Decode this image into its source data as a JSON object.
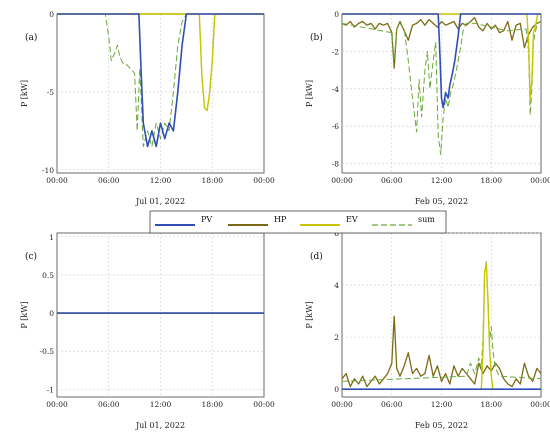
{
  "colors": {
    "PV": "#2f4fb5",
    "HP": "#7d6a14",
    "EV": "#c8c400",
    "sum": "#6aa83a",
    "pv_cut": "#d03a3a"
  },
  "legend": [
    "PV",
    "HP",
    "EV",
    "sum"
  ],
  "chart_data": [
    {
      "panel": "(a)",
      "type": "line",
      "xlabel": "Jul 01, 2022",
      "ylabel": "P  [kW]",
      "xticks": [
        "00:00",
        "06:00",
        "12:00",
        "18:00",
        "00:00"
      ],
      "yticks": [
        "0",
        "-5",
        "-10"
      ],
      "ylim": [
        -10.2,
        0
      ],
      "grid": true,
      "series": [
        {
          "name": "PV",
          "x": [
            0,
            5,
            9.5,
            9.7,
            10,
            10.5,
            11,
            11.5,
            12,
            12.5,
            13,
            13.5,
            14,
            14.5,
            15,
            16,
            24
          ],
          "y": [
            0,
            0,
            0,
            -3,
            -7,
            -8.5,
            -7.5,
            -8.5,
            -7,
            -8,
            -7,
            -7.5,
            -5,
            -2,
            0,
            0,
            0
          ]
        },
        {
          "name": "HP",
          "x": [
            0,
            24
          ],
          "y": [
            0,
            0
          ]
        },
        {
          "name": "EV",
          "x": [
            0,
            16.5,
            16.8,
            17.1,
            17.4,
            17.7,
            18,
            18.3,
            24
          ],
          "y": [
            0,
            0,
            -4,
            -6,
            -6.2,
            -5,
            -3,
            0,
            0
          ]
        },
        {
          "name": "sum",
          "x": [
            0,
            5.6,
            6,
            6.3,
            6.7,
            7,
            7.3,
            7.7,
            8,
            8.5,
            9,
            9.3,
            9.6,
            10,
            10.5,
            11,
            11.5,
            12,
            12.5,
            13,
            13.5,
            14,
            14.5,
            15,
            15.5,
            16,
            16.5,
            16.8,
            17.1,
            17.4,
            17.7,
            18,
            18.3,
            24
          ],
          "y": [
            0,
            0,
            -1.5,
            -3,
            -2.5,
            -2,
            -2.8,
            -3.2,
            -3.2,
            -3.5,
            -3.8,
            -7.5,
            -3.5,
            -8.5,
            -7.5,
            -8.5,
            -7,
            -8,
            -7,
            -7.5,
            -5,
            -2,
            -0.5,
            0,
            0,
            0,
            0,
            -4,
            -6,
            -6.2,
            -5,
            -3,
            0,
            0
          ]
        }
      ]
    },
    {
      "panel": "(b)",
      "type": "line",
      "xlabel": "Feb 05, 2022",
      "ylabel": "P  [kW]",
      "xticks": [
        "00:00",
        "06:00",
        "12:00",
        "18:00",
        "00:00"
      ],
      "yticks": [
        "0",
        "-2",
        "-4",
        "-6",
        "-8"
      ],
      "ylim": [
        -8.5,
        0
      ],
      "grid": true,
      "series": [
        {
          "name": "PV",
          "x": [
            0,
            11.6,
            11.8,
            12,
            12.2,
            12.5,
            12.8,
            13,
            13.3,
            13.6,
            14,
            14.3,
            24
          ],
          "y": [
            0,
            0,
            -2,
            -4.5,
            -5,
            -4.2,
            -4.5,
            -3.8,
            -3.2,
            -2.5,
            -1.2,
            0,
            0
          ]
        },
        {
          "name": "HP",
          "x": [
            0,
            0.5,
            1,
            1.5,
            2,
            2.5,
            3,
            3.5,
            4,
            4.5,
            5,
            5.5,
            6,
            6.3,
            6.6,
            7,
            7.5,
            8,
            8.5,
            9,
            9.5,
            10,
            10.5,
            11,
            11.5,
            12,
            12.5,
            13,
            13.5,
            14,
            14.5,
            15,
            15.5,
            16,
            16.5,
            17,
            17.5,
            18,
            18.5,
            19,
            19.5,
            20,
            20.5,
            21,
            21.5,
            22,
            22.5,
            23,
            23.5,
            24
          ],
          "y": [
            -0.5,
            -0.6,
            -0.4,
            -0.7,
            -0.5,
            -0.4,
            -0.6,
            -0.5,
            -0.8,
            -0.5,
            -0.6,
            -0.5,
            -1.0,
            -2.9,
            -0.8,
            -0.4,
            -0.9,
            -1.4,
            -0.6,
            -0.5,
            -0.3,
            -0.6,
            -0.3,
            -0.5,
            -0.7,
            -0.4,
            -0.6,
            -0.5,
            -0.4,
            -0.8,
            -0.5,
            -0.6,
            -0.4,
            -0.2,
            -0.7,
            -0.9,
            -0.5,
            -0.8,
            -0.6,
            -1.0,
            -0.9,
            -0.4,
            -1.4,
            -0.6,
            -0.5,
            -1.8,
            -1.1,
            -0.7,
            -0.5,
            -0.4
          ]
        },
        {
          "name": "EV",
          "x": [
            0,
            22.3,
            22.5,
            22.7,
            22.9,
            23.1,
            23.4,
            23.6,
            24
          ],
          "y": [
            0,
            0,
            -1.5,
            -4.6,
            -3.5,
            -1.0,
            -0.5,
            0,
            0
          ]
        },
        {
          "name": "sum",
          "x": [
            0,
            6,
            6.3,
            6.6,
            7,
            7.5,
            8,
            8.5,
            9,
            9.3,
            9.6,
            10,
            10.3,
            10.6,
            11,
            11.3,
            11.6,
            11.9,
            12.2,
            12.5,
            12.8,
            13.1,
            13.4,
            13.7,
            14,
            14.3,
            14.6,
            15,
            16,
            20,
            22.2,
            22.5,
            22.7,
            22.9,
            23.1,
            23.4,
            23.6,
            24
          ],
          "y": [
            -0.5,
            -1.0,
            -2.5,
            -0.8,
            -0.5,
            -0.8,
            -2.5,
            -4.5,
            -6.3,
            -3.5,
            -5.5,
            -3.0,
            -2.0,
            -4.0,
            -2.5,
            -1.5,
            -6.5,
            -7.5,
            -5.5,
            -4.5,
            -5.0,
            -4.2,
            -3.8,
            -3.2,
            -2.5,
            -1.8,
            -0.9,
            -0.5,
            -0.5,
            -0.9,
            -0.8,
            -2.0,
            -5.4,
            -4.0,
            -1.5,
            -0.8,
            -0.5,
            -0.4
          ]
        }
      ]
    },
    {
      "panel": "(c)",
      "type": "line",
      "xlabel": "Jul 01, 2022",
      "ylabel": "P  [kW]",
      "xticks": [
        "00:00",
        "06:00",
        "12:00",
        "18:00",
        "00:00"
      ],
      "yticks": [
        "1",
        "0.5",
        "0",
        "-0.5",
        "-1"
      ],
      "ylim": [
        -1.1,
        1.05
      ],
      "grid": true,
      "series": [
        {
          "name": "PV",
          "x": [
            0,
            24
          ],
          "y": [
            0,
            0
          ]
        },
        {
          "name": "HP",
          "x": [
            0,
            24
          ],
          "y": [
            0,
            0
          ]
        },
        {
          "name": "EV",
          "x": [
            0,
            24
          ],
          "y": [
            0,
            0
          ]
        },
        {
          "name": "sum",
          "x": [
            0,
            24
          ],
          "y": [
            0,
            0
          ]
        }
      ]
    },
    {
      "panel": "(d)",
      "type": "line",
      "xlabel": "Feb 05, 2022",
      "ylabel": "P  [kW]",
      "xticks": [
        "00:00",
        "06:00",
        "12:00",
        "18:00",
        "00:00"
      ],
      "yticks": [
        "6",
        "4",
        "2",
        "0"
      ],
      "ylim": [
        -0.3,
        6
      ],
      "grid": true,
      "series": [
        {
          "name": "PV",
          "x": [
            0,
            24
          ],
          "y": [
            0,
            0
          ]
        },
        {
          "name": "HP",
          "x": [
            0,
            0.5,
            1,
            1.5,
            2,
            2.5,
            3,
            3.5,
            4,
            4.5,
            5,
            5.5,
            6,
            6.3,
            6.6,
            7,
            7.5,
            8,
            8.5,
            9,
            9.5,
            10,
            10.5,
            11,
            11.5,
            12,
            12.5,
            13,
            13.5,
            14,
            14.5,
            15,
            15.5,
            16,
            16.5,
            17,
            17.5,
            18,
            18.5,
            19,
            19.5,
            20,
            20.5,
            21,
            21.5,
            22,
            22.5,
            23,
            23.5,
            24
          ],
          "y": [
            0.4,
            0.6,
            0.1,
            0.4,
            0.2,
            0.5,
            0.1,
            0.3,
            0.5,
            0.2,
            0.4,
            0.6,
            1.0,
            2.8,
            0.8,
            0.5,
            0.9,
            1.4,
            0.6,
            0.8,
            0.5,
            0.6,
            1.3,
            0.5,
            0.9,
            0.3,
            0.6,
            0.2,
            0.9,
            0.5,
            0.8,
            0.6,
            0.4,
            0.2,
            1.0,
            0.6,
            0.9,
            0.7,
            1.0,
            0.8,
            0.4,
            0.2,
            0.1,
            0.4,
            0.2,
            1.0,
            0.5,
            0.3,
            0.8,
            0.6
          ]
        },
        {
          "name": "EV",
          "x": [
            0,
            16.8,
            17,
            17.2,
            17.4,
            17.6,
            17.8,
            18,
            18.2,
            24
          ],
          "y": [
            0,
            0,
            1.5,
            4.5,
            4.8,
            3.5,
            1.5,
            0.5,
            0,
            0
          ]
        },
        {
          "name": "sum",
          "x": [
            0,
            15,
            15.5,
            16,
            16.5,
            16.8,
            17,
            17.2,
            17.4,
            17.6,
            17.8,
            18,
            18.2,
            18.5,
            19,
            24
          ],
          "y": [
            0.3,
            0.5,
            1.0,
            0.6,
            1.2,
            0.8,
            2.0,
            4.5,
            4.9,
            3.5,
            1.8,
            2.4,
            1.5,
            0.8,
            0.5,
            0.4
          ]
        }
      ]
    }
  ]
}
